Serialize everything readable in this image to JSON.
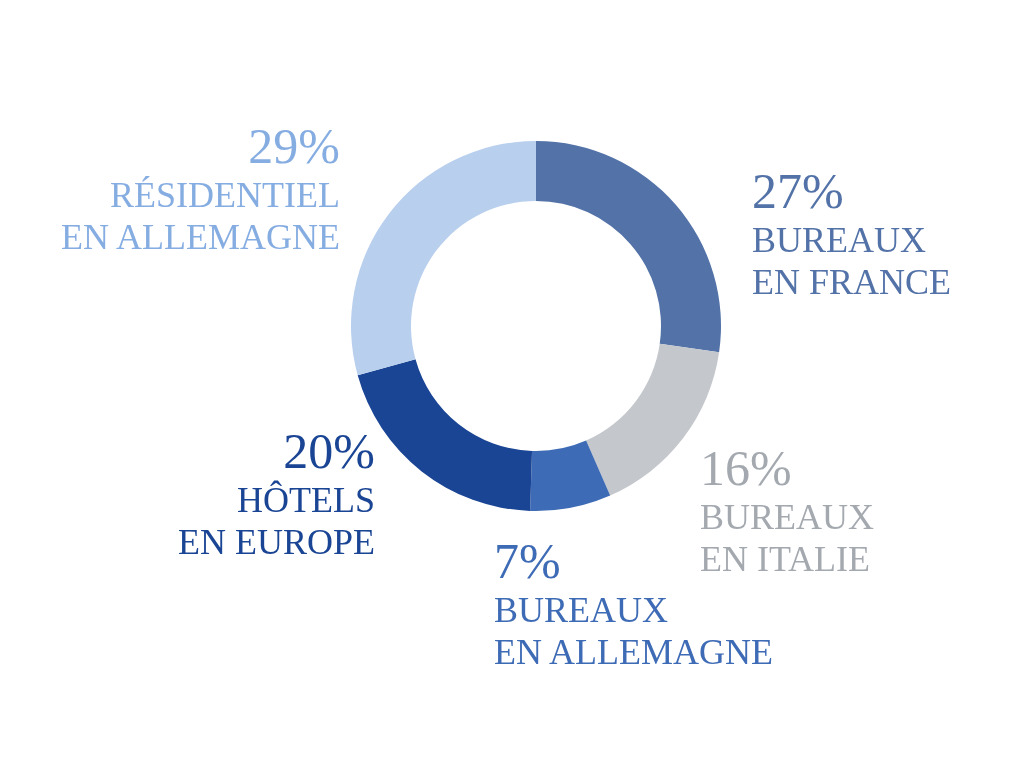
{
  "chart_data": {
    "type": "donut",
    "categories": [
      "BUREAUX EN FRANCE",
      "BUREAUX EN ITALIE",
      "BUREAUX EN ALLEMAGNE",
      "HÔTELS EN EUROPE",
      "RÉSIDENTIEL EN ALLEMAGNE"
    ],
    "values": [
      27,
      16,
      7,
      20,
      29
    ],
    "colors": [
      "#5272a8",
      "#c4c7cc",
      "#3e6bb5",
      "#1a4494",
      "#b8cfee"
    ],
    "value_labels": [
      "27%",
      "16%",
      "7%",
      "20%",
      "29%"
    ]
  }
}
